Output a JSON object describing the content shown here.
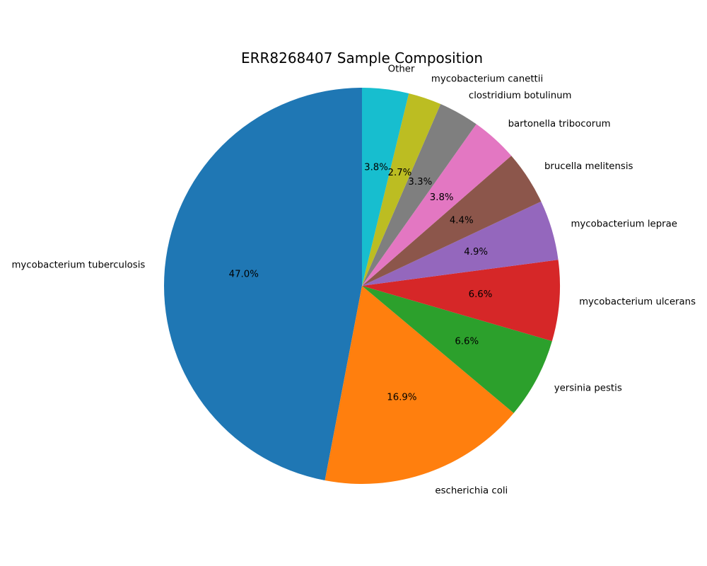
{
  "chart_data": {
    "type": "pie",
    "title": "ERR8268407 Sample Composition",
    "start_angle_deg": 90,
    "direction": "counterclockwise",
    "slices": [
      {
        "label": "mycobacterium tuberculosis",
        "value": 47.0,
        "pct_label": "47.0%",
        "color": "#1f77b4"
      },
      {
        "label": "escherichia coli",
        "value": 16.9,
        "pct_label": "16.9%",
        "color": "#ff7f0e"
      },
      {
        "label": "yersinia pestis",
        "value": 6.6,
        "pct_label": "6.6%",
        "color": "#2ca02c"
      },
      {
        "label": "mycobacterium ulcerans",
        "value": 6.6,
        "pct_label": "6.6%",
        "color": "#d62728"
      },
      {
        "label": "mycobacterium leprae",
        "value": 4.9,
        "pct_label": "4.9%",
        "color": "#9467bd"
      },
      {
        "label": "brucella melitensis",
        "value": 4.4,
        "pct_label": "4.4%",
        "color": "#8c564b"
      },
      {
        "label": "bartonella tribocorum",
        "value": 3.8,
        "pct_label": "3.8%",
        "color": "#e377c2"
      },
      {
        "label": "clostridium botulinum",
        "value": 3.3,
        "pct_label": "3.3%",
        "color": "#7f7f7f"
      },
      {
        "label": "mycobacterium canettii",
        "value": 2.7,
        "pct_label": "2.7%",
        "color": "#bcbd22"
      },
      {
        "label": "Other",
        "value": 3.8,
        "pct_label": "3.8%",
        "color": "#17becf"
      }
    ]
  }
}
